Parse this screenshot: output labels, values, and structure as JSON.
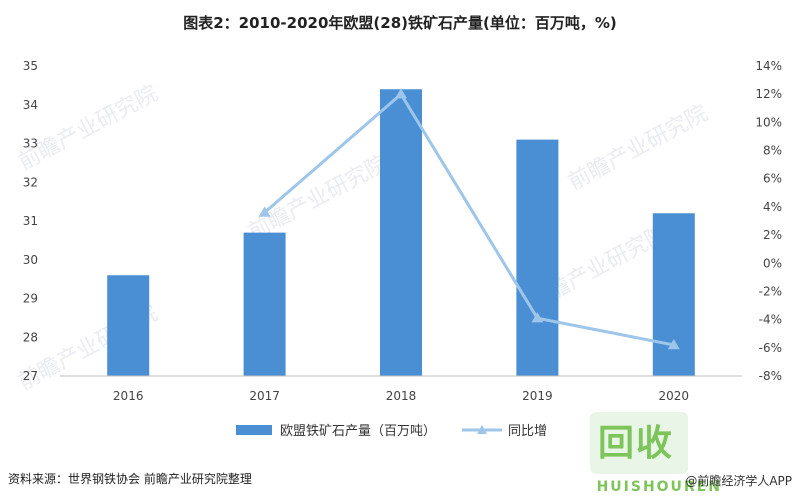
{
  "title": "图表2：2010-2020年欧盟(28)铁矿石产量(单位：百万吨，%)",
  "source": "资料来源：世界钢铁协会 前瞻产业研究院整理",
  "watermark_text": "前瞻产业研究院",
  "brand_text": "@前瞻经济学人APP",
  "logo": {
    "main": "回收",
    "sub": "HUISHOUREN"
  },
  "colors": {
    "bar": "#4a8fd4",
    "line": "#9ec5ea"
  },
  "chart_data": {
    "type": "bar+line",
    "categories": [
      "2016",
      "2017",
      "2018",
      "2019",
      "2020"
    ],
    "series": [
      {
        "name": "欧盟铁矿石产量（百万吨）",
        "type": "bar",
        "axis": "left",
        "values": [
          29.6,
          30.7,
          34.4,
          33.1,
          31.2
        ]
      },
      {
        "name": "同比增",
        "type": "line",
        "axis": "right",
        "values": [
          null,
          3.6,
          12.0,
          -3.9,
          -5.8
        ]
      }
    ],
    "y_left": {
      "min": 27,
      "max": 35,
      "ticks": [
        "27",
        "28",
        "29",
        "30",
        "31",
        "32",
        "33",
        "34",
        "35"
      ]
    },
    "y_right": {
      "min": -8,
      "max": 14,
      "ticks": [
        "-8%",
        "-6%",
        "-4%",
        "-2%",
        "0%",
        "2%",
        "4%",
        "6%",
        "8%",
        "10%",
        "12%",
        "14%"
      ]
    },
    "legend_position": "bottom"
  }
}
